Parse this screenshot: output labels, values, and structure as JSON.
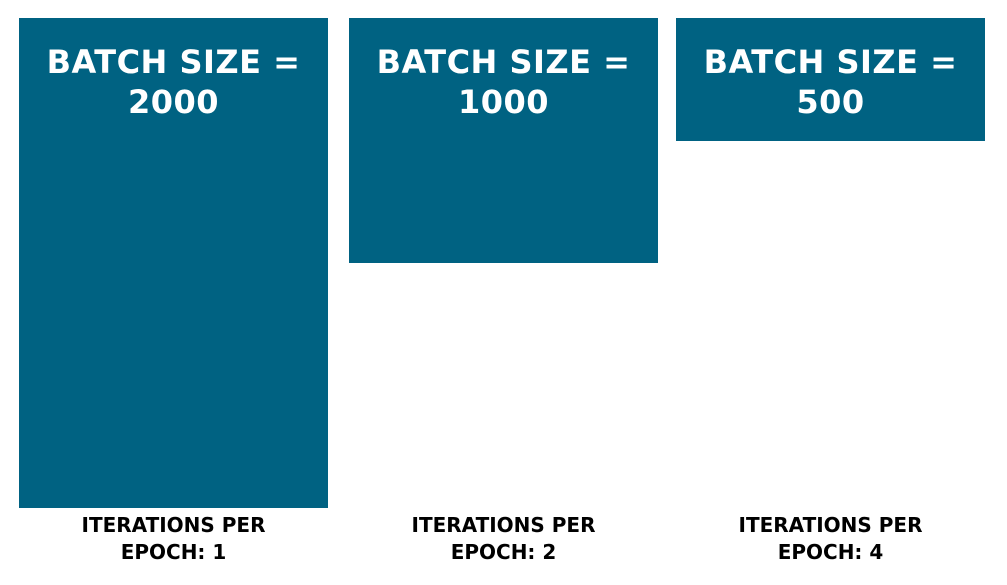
{
  "colors": {
    "block": "#006282",
    "block_text": "#ffffff",
    "caption_text": "#000000",
    "background": "#ffffff"
  },
  "batches": [
    {
      "label_line1": "BATCH SIZE =",
      "label_line2": "2000",
      "caption_line1": "ITERATIONS PER",
      "caption_line2": "EPOCH: 1"
    },
    {
      "label_line1": "BATCH SIZE =",
      "label_line2": "1000",
      "caption_line1": "ITERATIONS PER",
      "caption_line2": "EPOCH: 2"
    },
    {
      "label_line1": "BATCH SIZE =",
      "label_line2": "500",
      "caption_line1": "ITERATIONS PER",
      "caption_line2": "EPOCH: 4"
    }
  ]
}
